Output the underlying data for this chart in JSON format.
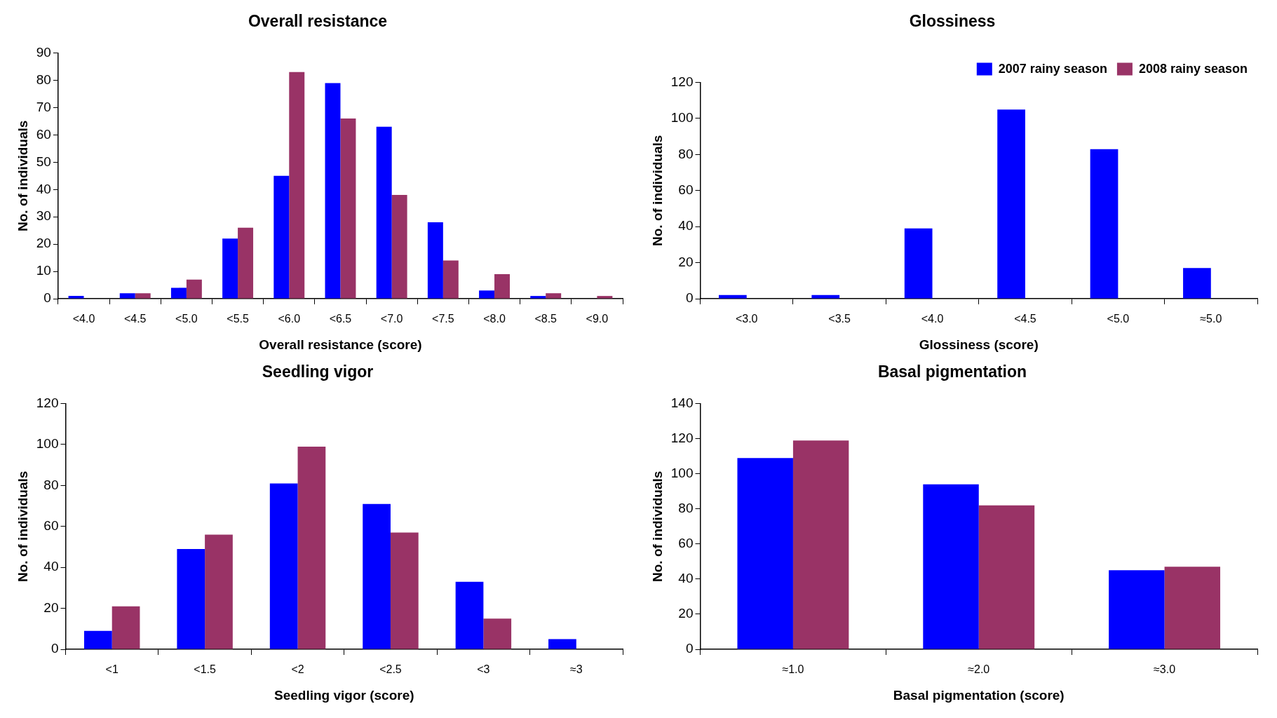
{
  "chart_data": [
    {
      "type": "bar",
      "title": "Overall resistance",
      "xlabel": "Overall resistance (score)",
      "ylabel": "No. of individuals",
      "categories": [
        "<4.0",
        "<4.5",
        "<5.0",
        "<5.5",
        "<6.0",
        "<6.5",
        "<7.0",
        "<7.5",
        "<8.0",
        "<8.5",
        "<9.0"
      ],
      "series": [
        {
          "color": "#0000ff",
          "values": [
            1,
            2,
            4,
            22,
            45,
            79,
            63,
            28,
            3,
            1,
            0
          ]
        },
        {
          "color": "#993366",
          "values": [
            0,
            2,
            7,
            26,
            83,
            66,
            38,
            14,
            9,
            2,
            1
          ]
        }
      ],
      "ylim": [
        0,
        90
      ],
      "yticks": [
        0,
        10,
        20,
        30,
        40,
        50,
        60,
        70,
        80,
        90
      ],
      "grid": false,
      "legend": false
    },
    {
      "type": "bar",
      "title": "Glossiness",
      "xlabel": "Glossiness (score)",
      "ylabel": "No. of individuals",
      "categories": [
        "<3.0",
        "<3.5",
        "<4.0",
        "<4.5",
        "<5.0",
        "≈5.0"
      ],
      "series": [
        {
          "name": "2007 rainy season",
          "color": "#0000ff",
          "values": [
            2,
            2,
            39,
            105,
            83,
            17
          ]
        },
        {
          "name": "2008 rainy season",
          "color": "#993366",
          "values": [
            null,
            null,
            null,
            null,
            null,
            null
          ]
        }
      ],
      "ylim": [
        0,
        120
      ],
      "yticks": [
        0,
        20,
        40,
        60,
        80,
        100,
        120
      ],
      "grid": false,
      "legend": "top right"
    },
    {
      "type": "bar",
      "title": "Seedling vigor",
      "xlabel": "Seedling vigor (score)",
      "ylabel": "No. of individuals",
      "categories": [
        "<1",
        "<1.5",
        "<2",
        "<2.5",
        "<3",
        "≈3"
      ],
      "series": [
        {
          "color": "#0000ff",
          "values": [
            9,
            49,
            81,
            71,
            33,
            5
          ]
        },
        {
          "color": "#993366",
          "values": [
            21,
            56,
            99,
            57,
            15,
            null
          ]
        }
      ],
      "ylim": [
        0,
        120
      ],
      "yticks": [
        0,
        20,
        40,
        60,
        80,
        100,
        120
      ],
      "grid": false,
      "legend": false
    },
    {
      "type": "bar",
      "title": "Basal pigmentation",
      "xlabel": "Basal pigmentation (score)",
      "ylabel": "No. of individuals",
      "categories": [
        "≈1.0",
        "≈2.0",
        "≈3.0"
      ],
      "series": [
        {
          "color": "#0000ff",
          "values": [
            109,
            94,
            45
          ]
        },
        {
          "color": "#993366",
          "values": [
            119,
            82,
            47
          ]
        }
      ],
      "ylim": [
        0,
        140
      ],
      "yticks": [
        0,
        20,
        40,
        60,
        80,
        100,
        120,
        140
      ],
      "grid": false,
      "legend": false
    }
  ]
}
